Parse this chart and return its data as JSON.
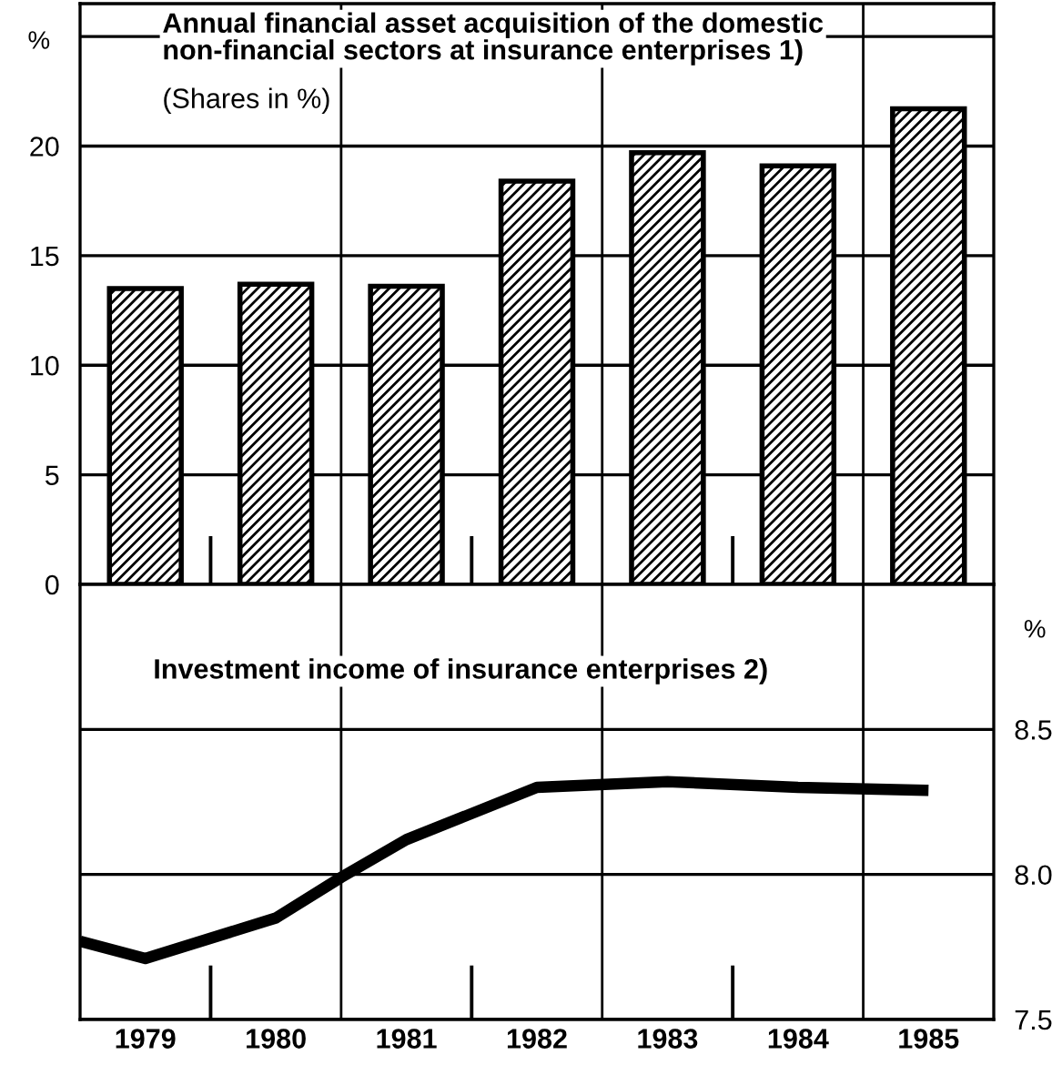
{
  "chart_data": [
    {
      "type": "bar",
      "title": "Annual financial asset acquisition of the domestic\nnon-financial sectors at insurance enterprises 1)",
      "subtitle": "(Shares in %)",
      "ylabel": "%",
      "categories": [
        "1979",
        "1980",
        "1981",
        "1982",
        "1983",
        "1984",
        "1985"
      ],
      "series": [
        {
          "color": "#000000",
          "values": [
            13.5,
            13.7,
            13.6,
            18.4,
            19.7,
            19.1,
            21.7
          ]
        }
      ],
      "ylim": [
        0,
        26.5
      ],
      "yticks": [
        0,
        5,
        10,
        15,
        20,
        {
          "value": 25,
          "label": null
        }
      ],
      "grid": true,
      "tick_labels": "y"
    },
    {
      "type": "line",
      "title": "Investment income of insurance enterprises 2)",
      "ylabel": "%",
      "series": [
        {
          "color": "#000000",
          "x": [
            1979.0,
            1979.5,
            1980.5,
            1981.0,
            1981.5,
            1982.5,
            1983.5,
            1984.5,
            1985.5
          ],
          "values": [
            7.77,
            7.71,
            7.85,
            7.99,
            8.12,
            8.3,
            8.32,
            8.3,
            8.29
          ]
        }
      ],
      "xlim": [
        1979,
        1986
      ],
      "xticks": [
        {
          "value": 1979.5,
          "label": "1979"
        },
        {
          "value": 1980.5,
          "label": "1980"
        },
        {
          "value": 1981,
          "label": null
        },
        {
          "value": 1981.5,
          "label": "1981"
        },
        {
          "value": 1982.5,
          "label": "1982"
        },
        {
          "value": 1983,
          "label": null
        },
        {
          "value": 1983.5,
          "label": "1983"
        },
        {
          "value": 1984.5,
          "label": "1984"
        },
        {
          "value": 1985,
          "label": null
        },
        {
          "value": 1985.5,
          "label": "1985"
        }
      ],
      "ylim": [
        7.5,
        9.0
      ],
      "yticks": [
        7.5,
        {
          "value": 8.0,
          "label": "8.0"
        },
        8.5
      ],
      "grid": true,
      "marker": "none",
      "line_style": "solid"
    }
  ]
}
